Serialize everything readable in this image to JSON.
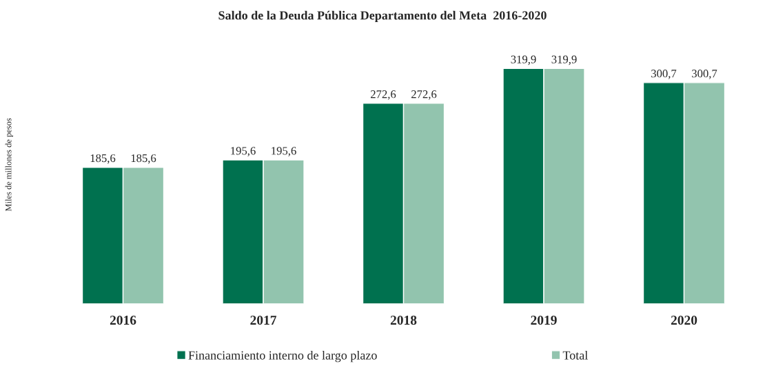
{
  "chart_data": {
    "type": "bar",
    "title": "Saldo de la Deuda Pública Departamento del Meta  2016-2020",
    "ylabel": "Miles de millones de pesos",
    "categories": [
      "2016",
      "2017",
      "2018",
      "2019",
      "2020"
    ],
    "series": [
      {
        "name": "Financiamiento interno de largo plazo",
        "color": "#00714f",
        "values": [
          185.6,
          195.6,
          272.6,
          319.9,
          300.7
        ],
        "value_labels": [
          "185,6",
          "195,6",
          "272,6",
          "319,9",
          "300,7"
        ]
      },
      {
        "name": "Total",
        "color": "#92c4ae",
        "values": [
          185.6,
          195.6,
          272.6,
          319.9,
          300.7
        ],
        "value_labels": [
          "185,6",
          "195,6",
          "272,6",
          "319,9",
          "300,7"
        ]
      }
    ],
    "legend": "bottom",
    "grid": false
  }
}
